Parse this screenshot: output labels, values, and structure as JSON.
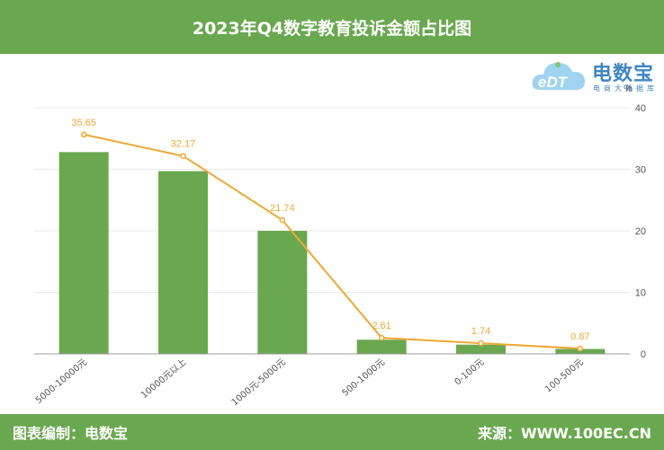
{
  "header": {
    "title": "2023年Q4数字教育投诉金额占比图"
  },
  "logo": {
    "text": "电数宝",
    "sub": "电商大数据库",
    "colors": {
      "cloud": "#9fd3ef",
      "text": "#3e86c5",
      "leaf": "#7cc576"
    }
  },
  "footer": {
    "left": "图表编制：电数宝",
    "right": "来源：WWW.100EC.CN"
  },
  "colors": {
    "header_bg": "#6aa84f",
    "bar": "#6aa84f",
    "line": "#f0a733",
    "grid": "#e8e8e8"
  },
  "chart_data": {
    "type": "bar",
    "title": "2023年Q4数字教育投诉金额占比图",
    "categories": [
      "5000-10000元",
      "10000元以上",
      "1000元-5000元",
      "500-1000元",
      "0-100元",
      "100-500元"
    ],
    "series": [
      {
        "type": "bar",
        "values": [
          32.8,
          29.7,
          20.0,
          2.3,
          1.5,
          0.8
        ]
      },
      {
        "type": "line",
        "values": [
          35.65,
          32.17,
          21.74,
          2.61,
          1.74,
          0.87
        ],
        "data_labels": [
          "35.65",
          "32.17",
          "21.74",
          "2.61",
          "1.74",
          "0.87"
        ]
      }
    ],
    "y_axis": {
      "side": "right",
      "unit": "%",
      "ylim": [
        0,
        40
      ],
      "ticks": [
        0,
        10,
        20,
        30,
        40
      ]
    },
    "grid": true,
    "legend": "none"
  }
}
